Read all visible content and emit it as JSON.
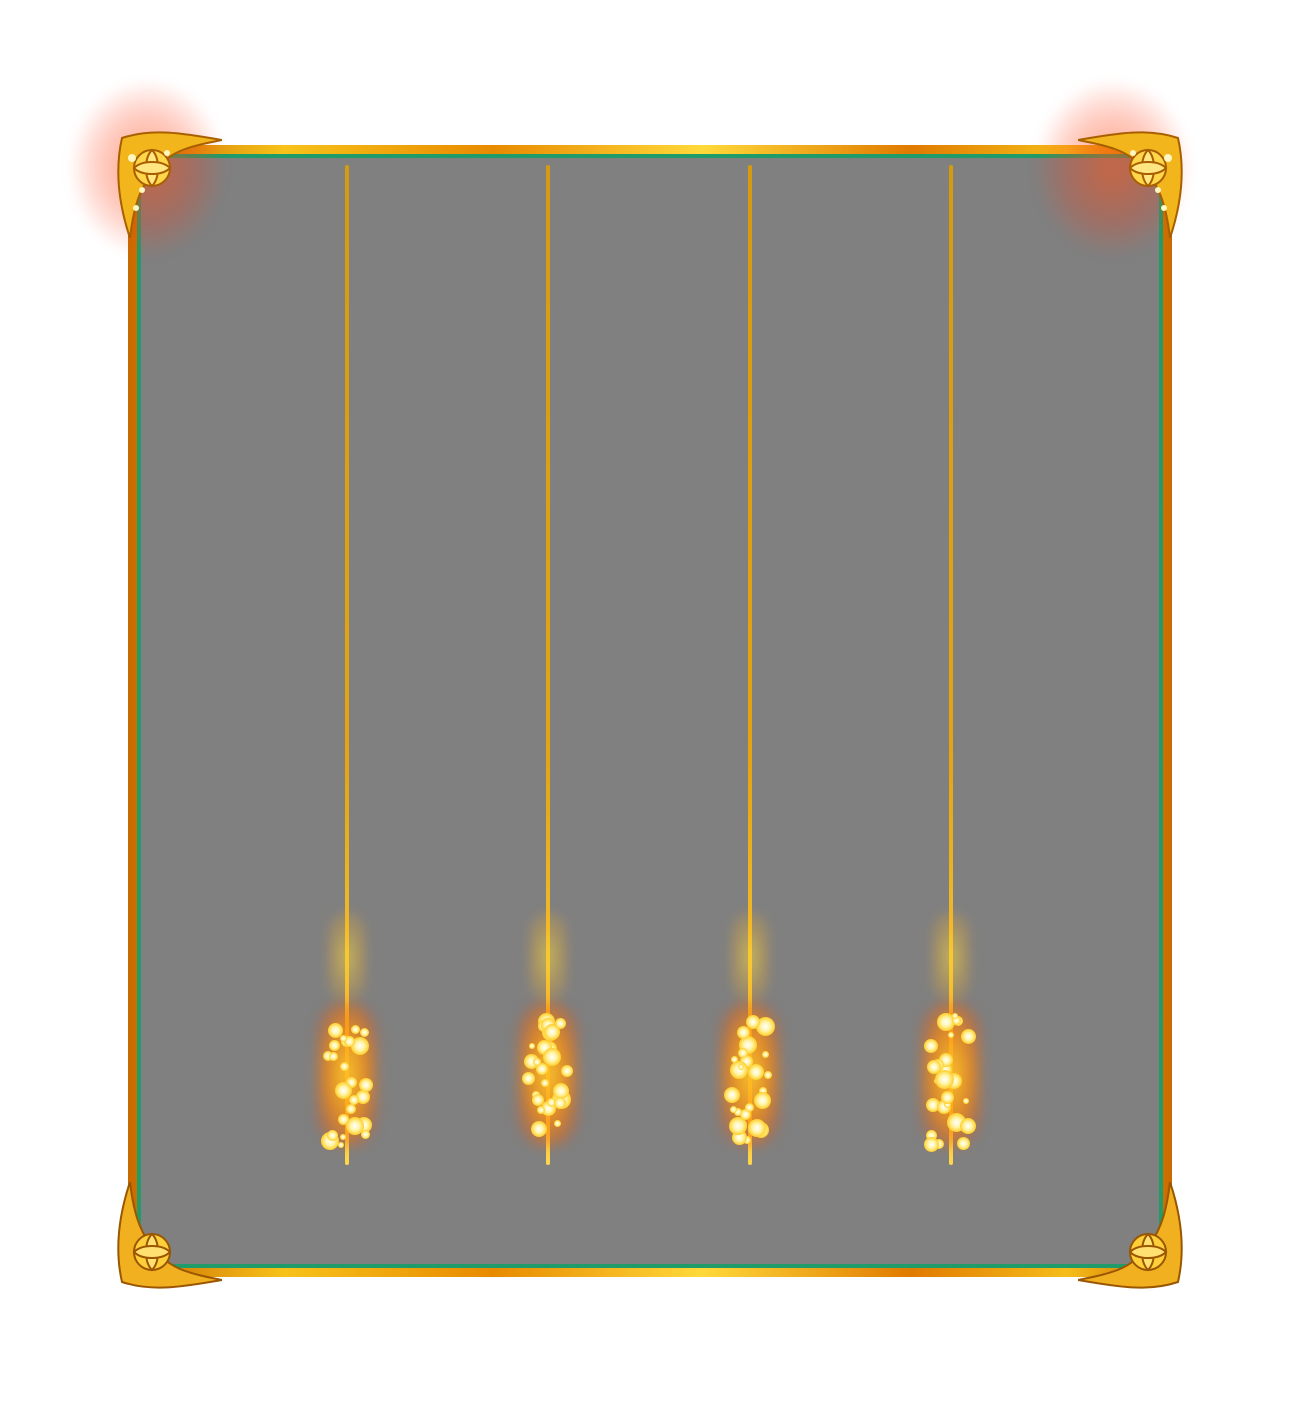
{
  "reels": {
    "count": 5,
    "divider_count": 4,
    "colors": {
      "background": "#808080",
      "inner_border": "#1f9c6a",
      "gold": "#f5bd1a",
      "deep_gold": "#c96a00",
      "sparkle": "#ffcf2a",
      "corner_glow": "#ff5014"
    }
  },
  "ornaments": {
    "top_left": "gold-flower-corner-icon",
    "top_right": "gold-flower-corner-icon",
    "bottom_left": "gold-flower-corner-icon",
    "bottom_right": "gold-flower-corner-icon"
  }
}
